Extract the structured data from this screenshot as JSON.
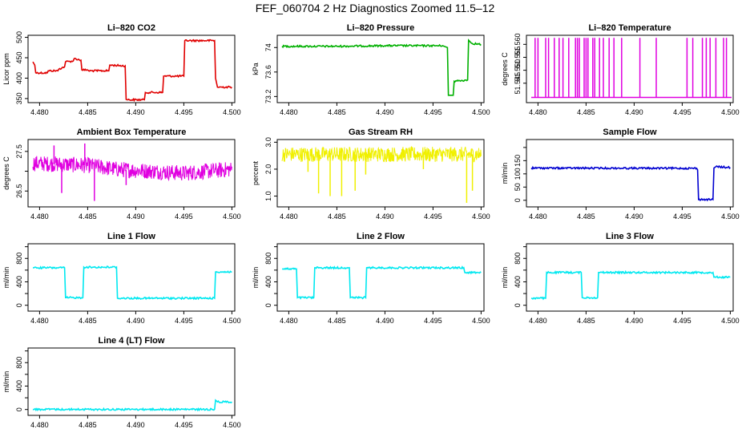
{
  "title": "FEF_060704  2 Hz Diagnostics Zoomed 11.5–12",
  "colors": {
    "red": "#e00000",
    "green": "#00b000",
    "magenta": "#e000e0",
    "yellow": "#f0f000",
    "blue": "#0000d0",
    "cyan": "#00e8f0"
  },
  "chart_data": [
    {
      "type": "line",
      "title": "Li–820 CO2",
      "ylabel": "Licor ppm",
      "color": "red",
      "xlim": [
        4.4788,
        4.5003
      ],
      "ylim": [
        340,
        505
      ],
      "yticks": [
        350,
        400,
        450,
        500
      ],
      "xticks": [
        4.49,
        4.495,
        4.5
      ],
      "xtick_labels": [
        "4.480",
        "4.485",
        "4.490",
        "4.495",
        "4.500"
      ],
      "xticks_all": [
        4.48,
        4.485,
        4.49,
        4.495,
        4.5
      ],
      "series": [
        {
          "x": [
            4.4793,
            4.4795,
            4.4796,
            4.4808,
            4.4809,
            4.4819,
            4.482,
            4.4826,
            4.4827,
            4.4835,
            4.4836,
            4.4843,
            4.4844,
            4.485,
            4.4851,
            4.4872,
            4.4873,
            4.4889,
            4.489,
            4.4891,
            4.4909,
            4.491,
            4.4928,
            4.4929,
            4.495,
            4.4951,
            4.4982,
            4.4983,
            4.4985,
            4.5
          ],
          "y": [
            440,
            432,
            413,
            413,
            418,
            418,
            422,
            428,
            440,
            442,
            448,
            444,
            420,
            420,
            418,
            418,
            432,
            430,
            348,
            347,
            347,
            365,
            365,
            405,
            405,
            492,
            492,
            400,
            378,
            378
          ]
        }
      ]
    },
    {
      "type": "line",
      "title": "Li–820 Pressure",
      "ylabel": "kPa",
      "color": "green",
      "xlim": [
        4.4788,
        4.5003
      ],
      "ylim": [
        73.1,
        74.2
      ],
      "yticks": [
        73.2,
        73.6,
        74.0
      ],
      "xticks_all": [
        4.48,
        4.485,
        4.49,
        4.495,
        4.5
      ],
      "xtick_labels": [
        "4.480",
        "4.485",
        "4.490",
        "4.495",
        "4.500"
      ],
      "series": [
        {
          "x": [
            4.4793,
            4.485,
            4.49,
            4.496,
            4.4965,
            4.4966,
            4.4971,
            4.4972,
            4.4986,
            4.4987,
            4.499,
            4.5
          ],
          "y": [
            74.02,
            74.02,
            74.03,
            74.03,
            74.0,
            73.22,
            73.22,
            73.45,
            73.47,
            74.12,
            74.07,
            74.05
          ]
        }
      ]
    },
    {
      "type": "line",
      "title": "Li–820 Temperature",
      "ylabel": "degrees C",
      "color": "magenta",
      "xlim": [
        4.4788,
        4.5003
      ],
      "ylim": [
        51.5375,
        51.5635
      ],
      "yticks": [
        51.545,
        51.55,
        51.555,
        51.56
      ],
      "ytick_labels": [
        "51.545",
        "51.550",
        "51.555",
        "51.560"
      ],
      "xticks_all": [
        4.48,
        4.485,
        4.49,
        4.495,
        4.5
      ],
      "xtick_labels": [
        "4.480",
        "4.485",
        "4.490",
        "4.495",
        "4.500"
      ],
      "baseline": 51.5395,
      "spike_top": 51.5625,
      "spikes": [
        4.4797,
        4.48,
        4.4808,
        4.4811,
        4.4817,
        4.4822,
        4.4826,
        4.4832,
        4.4839,
        4.4841,
        4.4843,
        4.4848,
        4.485,
        4.4852,
        4.4857,
        4.4859,
        4.4864,
        4.4868,
        4.4874,
        4.4879,
        4.4887,
        4.4906,
        4.4923,
        4.4955,
        4.4961,
        4.4971,
        4.4975,
        4.4979,
        4.4985,
        4.4993,
        4.4996
      ]
    },
    {
      "type": "line",
      "title": "Ambient Box Temperature",
      "ylabel": "degrees C",
      "color": "magenta",
      "xlim": [
        4.4788,
        4.5003
      ],
      "ylim": [
        26.1,
        27.8
      ],
      "yticks": [
        26.5,
        27.0,
        27.5
      ],
      "ytick_labels": [
        "26.5",
        "",
        "27.5"
      ],
      "xticks_all": [
        4.48,
        4.485,
        4.49,
        4.495,
        4.5
      ],
      "xtick_labels": [
        "4.480",
        "4.485",
        "4.490",
        "4.495",
        "4.500"
      ],
      "band_center": [
        [
          4.4793,
          27.2
        ],
        [
          4.485,
          27.15
        ],
        [
          4.488,
          27.05
        ],
        [
          4.495,
          26.95
        ],
        [
          4.5,
          27.05
        ]
      ],
      "band_half": 0.2,
      "outliers": [
        [
          4.4823,
          26.45
        ],
        [
          4.4857,
          26.25
        ],
        [
          4.4847,
          27.7
        ],
        [
          4.4815,
          27.65
        ],
        [
          4.489,
          26.65
        ]
      ]
    },
    {
      "type": "line",
      "title": "Gas Stream RH",
      "ylabel": "percent",
      "color": "yellow",
      "xlim": [
        4.4788,
        4.5003
      ],
      "ylim": [
        0.6,
        3.1
      ],
      "yticks": [
        1.0,
        2.0,
        3.0
      ],
      "ytick_labels": [
        "1.0",
        "2.0",
        "3.0"
      ],
      "xticks_all": [
        4.48,
        4.485,
        4.49,
        4.495,
        4.5
      ],
      "xtick_labels": [
        "4.480",
        "4.485",
        "4.490",
        "4.495",
        "4.500"
      ],
      "band_center": [
        [
          4.4793,
          2.55
        ],
        [
          4.5,
          2.55
        ]
      ],
      "band_half": 0.28,
      "outliers": [
        [
          4.4831,
          1.1
        ],
        [
          4.4843,
          1.0
        ],
        [
          4.4855,
          1.0
        ],
        [
          4.4869,
          1.2
        ],
        [
          4.4985,
          0.75
        ],
        [
          4.4991,
          1.2
        ],
        [
          4.482,
          1.9
        ],
        [
          4.488,
          1.8
        ],
        [
          4.494,
          2.0
        ]
      ]
    },
    {
      "type": "line",
      "title": "Sample Flow",
      "ylabel": "ml/min",
      "color": "blue",
      "xlim": [
        4.4788,
        4.5003
      ],
      "ylim": [
        -25,
        230
      ],
      "yticks": [
        0,
        50,
        100,
        150,
        200
      ],
      "ytick_labels": [
        "0",
        "50",
        "100",
        "150",
        ""
      ],
      "xticks_all": [
        4.48,
        4.485,
        4.49,
        4.495,
        4.5
      ],
      "xtick_labels": [
        "4.480",
        "4.485",
        "4.490",
        "4.495",
        "4.500"
      ],
      "series": [
        {
          "x": [
            4.4793,
            4.4965,
            4.4966,
            4.4967,
            4.4982,
            4.4983,
            4.4985,
            4.5
          ],
          "y": [
            122,
            121,
            115,
            3,
            3,
            122,
            127,
            124
          ]
        }
      ]
    },
    {
      "type": "line",
      "title": "Line 1 Flow",
      "ylabel": "ml/min",
      "color": "cyan",
      "xlim": [
        4.4788,
        4.5003
      ],
      "ylim": [
        -100,
        1050
      ],
      "yticks": [
        0,
        200,
        400,
        600,
        800,
        1000
      ],
      "ytick_labels": [
        "0",
        "",
        "400",
        "",
        "800",
        ""
      ],
      "xticks_all": [
        4.48,
        4.485,
        4.49,
        4.495,
        4.5
      ],
      "xtick_labels": [
        "4.480",
        "4.485",
        "4.490",
        "4.495",
        "4.500"
      ],
      "series": [
        {
          "x": [
            4.4793,
            4.4826,
            4.4827,
            4.4845,
            4.4846,
            4.488,
            4.4881,
            4.4982,
            4.4983,
            4.5
          ],
          "y": [
            640,
            640,
            130,
            130,
            650,
            650,
            120,
            120,
            570,
            570
          ]
        }
      ]
    },
    {
      "type": "line",
      "title": "Line 2 Flow",
      "ylabel": "ml/min",
      "color": "cyan",
      "xlim": [
        4.4788,
        4.5003
      ],
      "ylim": [
        -100,
        1050
      ],
      "yticks": [
        0,
        200,
        400,
        600,
        800,
        1000
      ],
      "ytick_labels": [
        "0",
        "",
        "400",
        "",
        "800",
        ""
      ],
      "xticks_all": [
        4.48,
        4.485,
        4.49,
        4.495,
        4.5
      ],
      "xtick_labels": [
        "4.480",
        "4.485",
        "4.490",
        "4.495",
        "4.500"
      ],
      "series": [
        {
          "x": [
            4.4793,
            4.4808,
            4.4809,
            4.4826,
            4.4827,
            4.4863,
            4.4864,
            4.488,
            4.4881,
            4.4982,
            4.4983,
            4.5
          ],
          "y": [
            620,
            620,
            130,
            130,
            640,
            640,
            130,
            130,
            640,
            640,
            560,
            560
          ]
        }
      ]
    },
    {
      "type": "line",
      "title": "Line 3 Flow",
      "ylabel": "ml/min",
      "color": "cyan",
      "xlim": [
        4.4788,
        4.5003
      ],
      "ylim": [
        -100,
        1050
      ],
      "yticks": [
        0,
        200,
        400,
        600,
        800,
        1000
      ],
      "ytick_labels": [
        "0",
        "",
        "400",
        "",
        "800",
        ""
      ],
      "xticks_all": [
        4.48,
        4.485,
        4.49,
        4.495,
        4.5
      ],
      "xtick_labels": [
        "4.480",
        "4.485",
        "4.490",
        "4.495",
        "4.500"
      ],
      "series": [
        {
          "x": [
            4.4793,
            4.4808,
            4.4809,
            4.4845,
            4.4846,
            4.4862,
            4.4863,
            4.4982,
            4.4983,
            4.5
          ],
          "y": [
            120,
            120,
            560,
            560,
            130,
            130,
            560,
            560,
            480,
            480
          ]
        }
      ]
    },
    {
      "type": "line",
      "title": "Line 4 (LT) Flow",
      "ylabel": "ml/min",
      "color": "cyan",
      "xlim": [
        4.4788,
        4.5003
      ],
      "ylim": [
        -100,
        1050
      ],
      "yticks": [
        0,
        200,
        400,
        600,
        800,
        1000
      ],
      "ytick_labels": [
        "0",
        "",
        "400",
        "",
        "800",
        ""
      ],
      "xticks_all": [
        4.48,
        4.485,
        4.49,
        4.495,
        4.5
      ],
      "xtick_labels": [
        "4.480",
        "4.485",
        "4.490",
        "4.495",
        "4.500"
      ],
      "series": [
        {
          "x": [
            4.4793,
            4.4982,
            4.4983,
            4.4985,
            4.5
          ],
          "y": [
            2,
            2,
            160,
            130,
            130
          ]
        }
      ]
    }
  ]
}
